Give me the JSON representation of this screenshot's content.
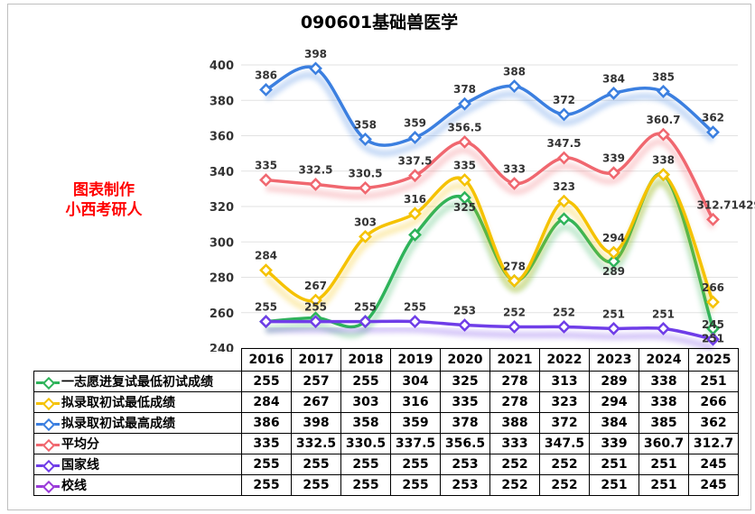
{
  "title": "090601基础兽医学",
  "maker": [
    "图表制作",
    "小西考研人"
  ],
  "chart_data": {
    "type": "line",
    "title": "090601基础兽医学",
    "categories": [
      "2016",
      "2017",
      "2018",
      "2019",
      "2020",
      "2021",
      "2022",
      "2023",
      "2024",
      "2025"
    ],
    "ylim": [
      240,
      400
    ],
    "yticks": [
      240,
      260,
      280,
      300,
      320,
      340,
      360,
      380,
      400
    ],
    "grid": true,
    "legend": "table-left",
    "series": [
      {
        "name": "一志愿进复试最低初试成绩",
        "color": "#2eb35a",
        "values": [
          255,
          257,
          255,
          304,
          325,
          278,
          313,
          289,
          338,
          251
        ],
        "labels": [
          "",
          "",
          "",
          "",
          "325",
          "",
          "",
          "289",
          "",
          "251"
        ]
      },
      {
        "name": "拟录取初试最低成绩",
        "color": "#f5c200",
        "values": [
          284,
          267,
          303,
          316,
          335,
          278,
          323,
          294,
          338,
          266
        ],
        "labels": [
          "284",
          "267",
          "303",
          "316",
          "335",
          "278",
          "323",
          "294",
          "338",
          "266"
        ]
      },
      {
        "name": "拟录取初试最高成绩",
        "color": "#3b7fe0",
        "values": [
          386,
          398,
          358,
          359,
          378,
          388,
          372,
          384,
          385,
          362
        ],
        "labels": [
          "386",
          "398",
          "358",
          "359",
          "378",
          "388",
          "372",
          "384",
          "385",
          "362"
        ]
      },
      {
        "name": "平均分",
        "color": "#f0676f",
        "values": [
          335,
          332.5,
          330.5,
          337.5,
          356.5,
          333,
          347.5,
          339,
          360.7,
          312.7
        ],
        "labels": [
          "335",
          "332.5",
          "330.5",
          "337.5",
          "356.5",
          "333",
          "347.5",
          "339",
          "360.7",
          "312.7142957"
        ],
        "table": [
          "335",
          "332.5",
          "330.5",
          "337.5",
          "356.5",
          "333",
          "347.5",
          "339",
          "360.7",
          "312.7"
        ]
      },
      {
        "name": "国家线",
        "color": "#6f3de8",
        "values": [
          255,
          255,
          255,
          255,
          253,
          252,
          252,
          251,
          251,
          245
        ],
        "labels": [
          "255",
          "255",
          "255",
          "255",
          "253",
          "252",
          "252",
          "251",
          "251",
          "245"
        ]
      },
      {
        "name": "校线",
        "color": "#9a3bd9",
        "values": [
          255,
          255,
          255,
          255,
          253,
          252,
          252,
          251,
          251,
          245
        ],
        "hidden_line": true,
        "labels": [
          "",
          "",
          "",
          "",
          "",
          "",
          "",
          "",
          "",
          ""
        ]
      }
    ]
  }
}
